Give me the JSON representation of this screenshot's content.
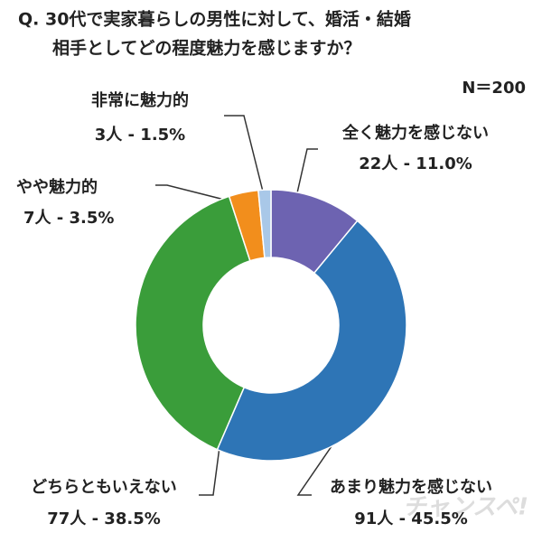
{
  "chart_data": {
    "type": "donut",
    "title": [
      "Q. 30代で実家暮らしの男性に対して、婚活・結婚",
      "相手としてどの程度魅力を感じますか？"
    ],
    "subtitle": "N＝200",
    "watermark": "チャンスペ!",
    "categories": [
      "全く魅力を感じない",
      "あまり魅力を感じない",
      "どちらともいえない",
      "やや魅力的",
      "非常に魅力的"
    ],
    "values": [
      11.0,
      45.5,
      38.5,
      3.5,
      1.5
    ],
    "value_labels": [
      "22人 - 11.0%",
      "91人 - 45.5%",
      "77人 - 38.5%",
      "7人 - 3.5%",
      "3人 - 1.5%"
    ],
    "colors": [
      "#6d63b1",
      "#2e75b6",
      "#3a9d3a",
      "#f28e1c",
      "#a9c8e8"
    ]
  }
}
